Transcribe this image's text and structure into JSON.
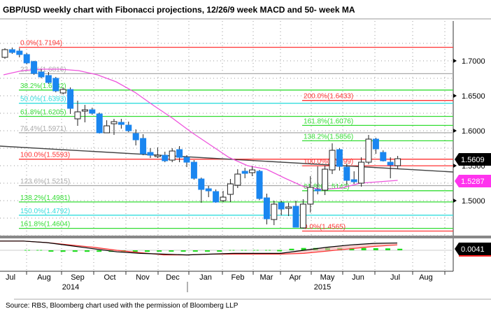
{
  "title": "GBP/USD weekly chart with Fibonacci projections, 12/26/9 week MACD and 50- week MA",
  "source": "Source: RBS, Bloomberg chart used with the permission of Bloomberg LLP",
  "colors": {
    "up_fill": "#ffffff",
    "down_fill": "#1a86f0",
    "ma": "#ee55dd",
    "trend": "#444444",
    "macd": "#000000",
    "signal": "#ff3333",
    "hist": "#22dd22"
  },
  "chart_data": {
    "type": "candlestick",
    "title": "GBP/USD weekly chart with Fibonacci projections, 12/26/9 week MACD and 50- week MA",
    "ylim": [
      1.45,
      1.74
    ],
    "y_ticks": [
      "1.7000",
      "1.6500",
      "1.6000",
      "1.5500",
      "1.5000"
    ],
    "y_tick_values": [
      1.7,
      1.65,
      1.6,
      1.55,
      1.5
    ],
    "x_months": [
      "Jul",
      "Aug",
      "Sep",
      "Oct",
      "Nov",
      "Dec",
      "Jan",
      "Feb",
      "Mar",
      "Apr",
      "May",
      "Jun",
      "Jul",
      "Aug"
    ],
    "x_years": [
      "2014",
      "2015"
    ],
    "candles_ohlc": [
      [
        1.705,
        1.718,
        1.703,
        1.716
      ],
      [
        1.716,
        1.719,
        1.71,
        1.712
      ],
      [
        1.714,
        1.718,
        1.705,
        1.709
      ],
      [
        1.709,
        1.711,
        1.695,
        1.697
      ],
      [
        1.699,
        1.7,
        1.68,
        1.682
      ],
      [
        1.684,
        1.688,
        1.675,
        1.677
      ],
      [
        1.679,
        1.684,
        1.667,
        1.669
      ],
      [
        1.675,
        1.677,
        1.655,
        1.657
      ],
      [
        1.654,
        1.662,
        1.652,
        1.659
      ],
      [
        1.659,
        1.662,
        1.624,
        1.632
      ],
      [
        1.617,
        1.643,
        1.607,
        1.627
      ],
      [
        1.629,
        1.637,
        1.612,
        1.63
      ],
      [
        1.63,
        1.633,
        1.623,
        1.625
      ],
      [
        1.624,
        1.626,
        1.596,
        1.597
      ],
      [
        1.597,
        1.615,
        1.597,
        1.607
      ],
      [
        1.61,
        1.617,
        1.594,
        1.613
      ],
      [
        1.612,
        1.617,
        1.603,
        1.609
      ],
      [
        1.608,
        1.613,
        1.598,
        1.6
      ],
      [
        1.596,
        1.602,
        1.579,
        1.587
      ],
      [
        1.589,
        1.595,
        1.565,
        1.567
      ],
      [
        1.569,
        1.575,
        1.561,
        1.565
      ],
      [
        1.564,
        1.576,
        1.561,
        1.565
      ],
      [
        1.565,
        1.57,
        1.555,
        1.557
      ],
      [
        1.558,
        1.575,
        1.555,
        1.571
      ],
      [
        1.573,
        1.578,
        1.555,
        1.562
      ],
      [
        1.562,
        1.565,
        1.548,
        1.555
      ],
      [
        1.555,
        1.558,
        1.53,
        1.532
      ],
      [
        1.531,
        1.533,
        1.497,
        1.516
      ],
      [
        1.517,
        1.521,
        1.505,
        1.514
      ],
      [
        1.513,
        1.516,
        1.497,
        1.498
      ],
      [
        1.5,
        1.514,
        1.498,
        1.505
      ],
      [
        1.509,
        1.531,
        1.498,
        1.524
      ],
      [
        1.522,
        1.545,
        1.518,
        1.538
      ],
      [
        1.542,
        1.547,
        1.532,
        1.539
      ],
      [
        1.54,
        1.549,
        1.535,
        1.544
      ],
      [
        1.542,
        1.544,
        1.501,
        1.503
      ],
      [
        1.504,
        1.51,
        1.466,
        1.474
      ],
      [
        1.473,
        1.5,
        1.465,
        1.495
      ],
      [
        1.497,
        1.5,
        1.479,
        1.488
      ],
      [
        1.489,
        1.497,
        1.478,
        1.491
      ],
      [
        1.492,
        1.5,
        1.462,
        1.462
      ],
      [
        1.461,
        1.502,
        1.46,
        1.495
      ],
      [
        1.495,
        1.535,
        1.483,
        1.519
      ],
      [
        1.516,
        1.549,
        1.509,
        1.514
      ],
      [
        1.515,
        1.55,
        1.508,
        1.545
      ],
      [
        1.544,
        1.582,
        1.538,
        1.572
      ],
      [
        1.573,
        1.575,
        1.543,
        1.549
      ],
      [
        1.548,
        1.553,
        1.523,
        1.529
      ],
      [
        1.53,
        1.542,
        1.524,
        1.527
      ],
      [
        1.525,
        1.562,
        1.52,
        1.555
      ],
      [
        1.555,
        1.594,
        1.552,
        1.588
      ],
      [
        1.588,
        1.59,
        1.567,
        1.574
      ],
      [
        1.569,
        1.572,
        1.556,
        1.557
      ],
      [
        1.555,
        1.562,
        1.532,
        1.551
      ],
      [
        1.55,
        1.564,
        1.546,
        1.56
      ]
    ],
    "ma50": [
      1.68,
      1.686,
      1.688,
      1.688,
      1.686,
      1.68,
      1.67,
      1.655,
      1.636,
      1.618,
      1.598,
      1.58,
      1.562,
      1.55,
      1.545,
      1.532,
      1.52,
      1.516,
      1.518,
      1.525,
      1.527,
      1.529
    ],
    "trendline": [
      1.578,
      1.541
    ],
    "fib_left": [
      {
        "pct": "0.0%",
        "value": "1.7194",
        "price": 1.7194,
        "color": "#ff3333"
      },
      {
        "pct": "23.6%",
        "value": "1.6816",
        "price": 1.6816,
        "color": "#aaaaaa"
      },
      {
        "pct": "38.2%",
        "value": "1.6582",
        "price": 1.6582,
        "color": "#33dd33"
      },
      {
        "pct": "50.0%",
        "value": "1.6393",
        "price": 1.6393,
        "color": "#33dddd"
      },
      {
        "pct": "61.8%",
        "value": "1.6205",
        "price": 1.6205,
        "color": "#33dd33"
      },
      {
        "pct": "76.4%",
        "value": "1.5971",
        "price": 1.5971,
        "color": "#aaaaaa"
      },
      {
        "pct": "100.0%",
        "value": "1.5593",
        "price": 1.5593,
        "color": "#ff3333"
      },
      {
        "pct": "123.6%",
        "value": "1.5215",
        "price": 1.5215,
        "color": "#aaaaaa"
      },
      {
        "pct": "138.2%",
        "value": "1.4981",
        "price": 1.4981,
        "color": "#33dd33"
      },
      {
        "pct": "150.0%",
        "value": "1.4792",
        "price": 1.4792,
        "color": "#33dddd"
      },
      {
        "pct": "161.8%",
        "value": "1.4604",
        "price": 1.4604,
        "color": "#33dd33"
      }
    ],
    "fib_right": [
      {
        "pct": "200.0%",
        "value": "1.6433",
        "price": 1.6433,
        "color": "#ff3333"
      },
      {
        "pct": "161.8%",
        "value": "1.6076",
        "price": 1.6076,
        "color": "#33dd33"
      },
      {
        "pct": "138.2%",
        "value": "1.5856",
        "price": 1.5856,
        "color": "#33dd33"
      },
      {
        "pct": "100.0%",
        "value": "1.5499",
        "price": 1.5499,
        "color": "#ff3333"
      },
      {
        "pct": "61.8%",
        "value": "1.5142",
        "price": 1.5142,
        "color": "#33dd33"
      },
      {
        "pct": "0.0%",
        "value": "1.4565",
        "price": 1.4565,
        "color": "#ff3333"
      }
    ],
    "last_price": "1.5609",
    "ma_value": "1.5287",
    "macd_value": "0.0041",
    "macd": [
      0.012,
      0.012,
      0.01,
      0.006,
      0.002,
      -0.002,
      -0.004,
      -0.005,
      -0.006,
      -0.005,
      -0.004,
      -0.004,
      -0.004,
      0.0,
      0.004,
      0.007,
      0.009,
      0.0095
    ],
    "signal": [
      0.012,
      0.012,
      0.01,
      0.007,
      0.004,
      0.0,
      -0.003,
      -0.006,
      -0.006,
      -0.005,
      -0.005,
      -0.005,
      -0.005,
      -0.004,
      -0.001,
      0.002,
      0.005,
      0.007
    ],
    "histogram": [
      0,
      0,
      -0.001,
      -0.002,
      -0.002,
      -0.002,
      -0.002,
      -0.002,
      -0.002,
      -0.002,
      -0.002,
      -0.0015,
      -0.0015,
      -0.0015,
      -0.001,
      -0.001,
      -0.0005,
      0,
      0,
      0,
      0,
      0.0005,
      0.002,
      0.003,
      0.003,
      0.003,
      0.003,
      0.003,
      0.003,
      0.0028,
      0.0025,
      0.002
    ]
  }
}
